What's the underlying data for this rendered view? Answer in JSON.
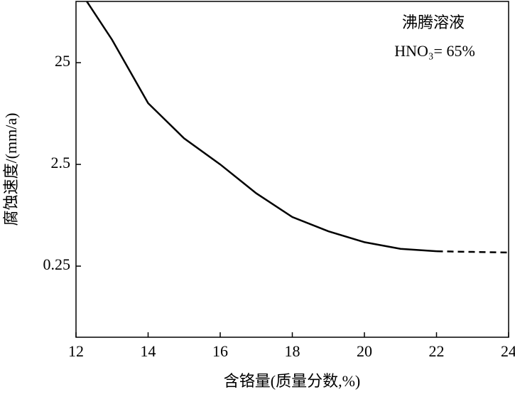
{
  "chart_data": {
    "type": "line",
    "annotations": [
      "沸腾溶液",
      "HNO₃= 65%"
    ],
    "xlabel": "含铬量(质量分数,%)",
    "ylabel": "腐蚀速度/(mm/a)",
    "x": [
      12.3,
      13,
      14,
      15,
      16,
      17,
      18,
      19,
      20,
      21,
      22,
      23,
      24
    ],
    "series": [
      {
        "color": "#000000",
        "dash": "none",
        "values": [
          100,
          42,
          10,
          4.5,
          2.5,
          1.3,
          0.76,
          0.55,
          0.43,
          0.37,
          0.35,
          null,
          null
        ]
      },
      {
        "color": "#000000",
        "dash": "9 6",
        "values": [
          null,
          null,
          null,
          null,
          null,
          null,
          null,
          null,
          null,
          null,
          0.35,
          0.345,
          0.34
        ]
      }
    ],
    "xlim": [
      12,
      24
    ],
    "xticks": [
      12,
      14,
      16,
      18,
      20,
      22,
      24
    ],
    "ylim": [
      0.05,
      100
    ],
    "yticks": [
      0.25,
      2.5,
      25
    ],
    "log_y": true
  }
}
